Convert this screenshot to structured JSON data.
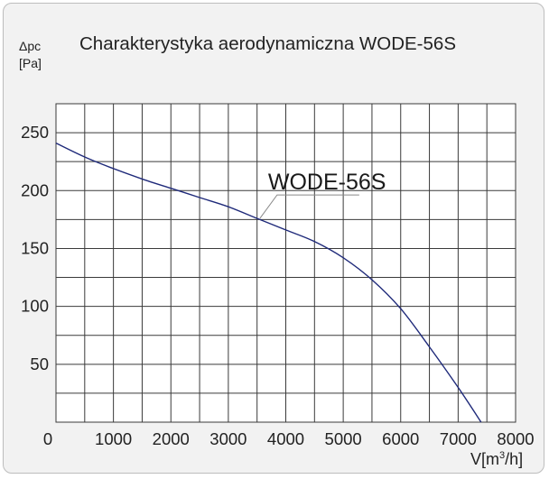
{
  "chart_data": {
    "type": "line",
    "title": "Charakterystyka aerodynamiczna WODE-56S",
    "ylabel_symbol": "Δpc",
    "ylabel_unit": "[Pa]",
    "xlabel_prefix": "V[m",
    "xlabel_sup": "3",
    "xlabel_suffix": "/h]",
    "xlim": [
      0,
      8000
    ],
    "ylim": [
      0,
      275
    ],
    "xticks": [
      "0",
      "1000",
      "2000",
      "3000",
      "4000",
      "5000",
      "6000",
      "7000",
      "8000"
    ],
    "yticks": [
      "50",
      "100",
      "150",
      "200",
      "250"
    ],
    "grid": true,
    "line_color": "#1f2a7a",
    "grid_color": "#3a3a3a",
    "plot_background": "#ffffff",
    "series": [
      {
        "name": "WODE-56S",
        "x": [
          0,
          500,
          1000,
          1500,
          2000,
          2500,
          3000,
          3500,
          4000,
          4500,
          5000,
          5500,
          6000,
          6500,
          7000,
          7400
        ],
        "y": [
          241,
          229,
          219,
          210,
          202,
          194,
          186,
          176,
          166,
          156,
          142,
          123,
          98,
          65,
          30,
          0
        ]
      }
    ],
    "annotation": {
      "text": "WODE-56S",
      "x": 3550,
      "y": 176
    }
  }
}
